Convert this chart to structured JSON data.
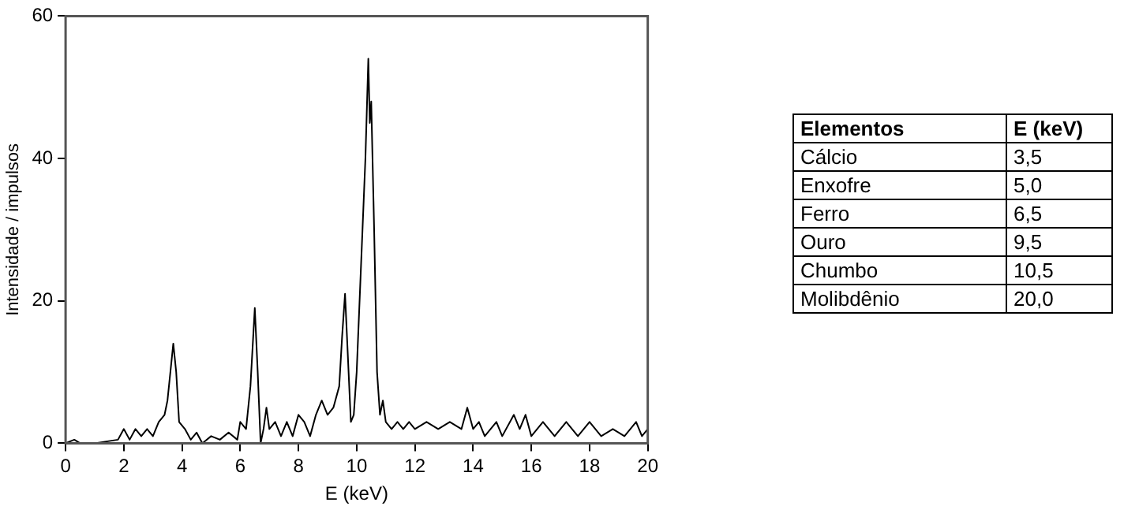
{
  "chart_data": [
    {
      "type": "line",
      "xlabel": "E (keV)",
      "ylabel": "Intensidade / impulsos",
      "xlim": [
        0,
        20
      ],
      "ylim": [
        0,
        60
      ],
      "xticks": [
        0,
        2,
        4,
        6,
        8,
        10,
        12,
        14,
        16,
        18,
        20
      ],
      "yticks": [
        0,
        20,
        40,
        60
      ],
      "grid": false,
      "series": [
        {
          "color": "#000000",
          "x": [
            0,
            0.3,
            0.5,
            1.0,
            1.8,
            2.0,
            2.2,
            2.4,
            2.6,
            2.8,
            3.0,
            3.2,
            3.4,
            3.5,
            3.6,
            3.7,
            3.8,
            3.9,
            4.1,
            4.3,
            4.5,
            4.7,
            5.0,
            5.3,
            5.6,
            5.9,
            6.0,
            6.2,
            6.35,
            6.5,
            6.6,
            6.7,
            6.8,
            6.9,
            7.0,
            7.2,
            7.4,
            7.6,
            7.8,
            8.0,
            8.2,
            8.4,
            8.6,
            8.8,
            9.0,
            9.2,
            9.4,
            9.5,
            9.6,
            9.7,
            9.8,
            9.9,
            10.0,
            10.2,
            10.3,
            10.4,
            10.45,
            10.5,
            10.6,
            10.7,
            10.8,
            10.9,
            11.0,
            11.2,
            11.4,
            11.6,
            11.8,
            12.0,
            12.4,
            12.8,
            13.2,
            13.6,
            13.8,
            14.0,
            14.2,
            14.4,
            14.8,
            15.0,
            15.4,
            15.6,
            15.8,
            16.0,
            16.4,
            16.8,
            17.2,
            17.6,
            18.0,
            18.4,
            18.8,
            19.2,
            19.6,
            19.8,
            20.0
          ],
          "values": [
            0,
            0.5,
            0,
            0,
            0.5,
            2,
            0.5,
            2,
            1,
            2,
            1,
            3,
            4,
            6,
            10,
            14,
            10,
            3,
            2,
            0.5,
            1.5,
            0,
            1,
            0.5,
            1.5,
            0.5,
            3,
            2,
            8,
            19,
            10,
            0,
            2,
            5,
            2,
            3,
            1,
            3,
            1,
            4,
            3,
            1,
            4,
            6,
            4,
            5,
            8,
            15,
            21,
            12,
            3,
            4,
            10,
            30,
            40,
            54,
            45,
            48,
            30,
            10,
            4,
            6,
            3,
            2,
            3,
            2,
            3,
            2,
            3,
            2,
            3,
            2,
            5,
            2,
            3,
            1,
            3,
            1,
            4,
            2,
            4,
            1,
            3,
            1,
            3,
            1,
            3,
            1,
            2,
            1,
            3,
            1,
            2
          ]
        }
      ]
    },
    {
      "type": "other",
      "annotations": [
        "Elementos",
        "E (keV)",
        "Cálcio",
        "3,5",
        "Enxofre",
        "5,0",
        "Ferro",
        "6,5",
        "Ouro",
        "9,5",
        "Chumbo",
        "10,5",
        "Molibdênio",
        "20,0"
      ]
    }
  ]
}
